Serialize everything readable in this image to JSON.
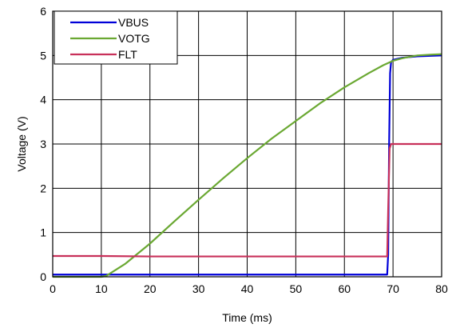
{
  "chart_data": {
    "type": "line",
    "title": "",
    "xlabel": "Time (ms)",
    "ylabel": "Voltage (V)",
    "xlim": [
      0,
      80
    ],
    "ylim": [
      0,
      6
    ],
    "xticks": [
      0,
      10,
      20,
      30,
      40,
      50,
      60,
      70,
      80
    ],
    "yticks": [
      0,
      1,
      2,
      3,
      4,
      5,
      6
    ],
    "grid": true,
    "legend_position": "top-left",
    "series": [
      {
        "name": "VBUS",
        "color": "#0000d8",
        "x": [
          0,
          10,
          20,
          30,
          40,
          50,
          60,
          68.8,
          69.0,
          69.2,
          69.4,
          69.6,
          70,
          72,
          75,
          80
        ],
        "y": [
          0.05,
          0.05,
          0.05,
          0.05,
          0.05,
          0.05,
          0.05,
          0.05,
          0.5,
          3.0,
          4.6,
          4.85,
          4.9,
          4.95,
          4.98,
          5.0
        ]
      },
      {
        "name": "VOTG",
        "color": "#6aa832",
        "x": [
          0,
          10,
          11,
          15,
          20,
          25,
          30,
          35,
          40,
          45,
          50,
          55,
          60,
          65,
          68,
          70,
          72,
          75,
          78,
          80
        ],
        "y": [
          0,
          0,
          0.02,
          0.3,
          0.75,
          1.25,
          1.74,
          2.22,
          2.68,
          3.12,
          3.52,
          3.92,
          4.28,
          4.6,
          4.78,
          4.88,
          4.94,
          5.0,
          5.02,
          5.03
        ]
      },
      {
        "name": "FLT",
        "color": "#c8305a",
        "x": [
          0,
          10,
          20,
          30,
          40,
          50,
          60,
          68.8,
          69.0,
          69.3,
          69.6,
          70,
          75,
          80
        ],
        "y": [
          0.47,
          0.47,
          0.46,
          0.46,
          0.46,
          0.46,
          0.46,
          0.46,
          1.5,
          2.9,
          3.0,
          3.0,
          3.0,
          3.0
        ]
      }
    ]
  }
}
